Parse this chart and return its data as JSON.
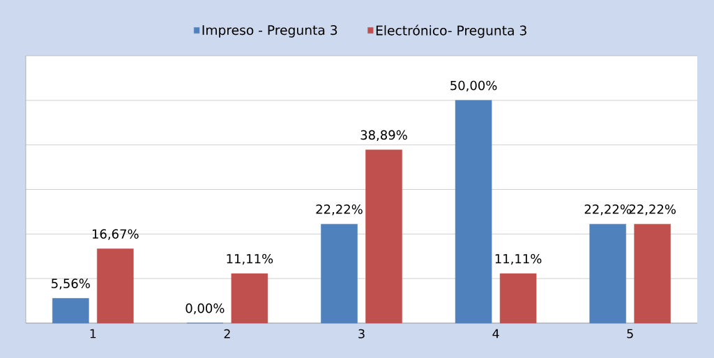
{
  "chart_data": {
    "type": "bar",
    "categories": [
      "1",
      "2",
      "3",
      "4",
      "5"
    ],
    "series": [
      {
        "name": "Impreso - Pregunta 3",
        "color": "#4f81bd",
        "values": [
          5.56,
          0.0,
          22.22,
          50.0,
          22.22
        ],
        "value_labels": [
          "5,56%",
          "0,00%",
          "22,22%",
          "50,00%",
          "22,22%"
        ]
      },
      {
        "name": "Electrónico-  Pregunta 3",
        "color": "#c0504d",
        "values": [
          16.67,
          11.11,
          38.89,
          11.11,
          22.22
        ],
        "value_labels": [
          "16,67%",
          "11,11%",
          "38,89%",
          "11,11%",
          "22,22%"
        ]
      }
    ],
    "ylim": [
      0,
      60
    ],
    "yticks": [
      {
        "value": 0,
        "label": null
      },
      {
        "value": 10,
        "label": null
      },
      {
        "value": 20,
        "label": null
      },
      {
        "value": 30,
        "label": null
      },
      {
        "value": 40,
        "label": null
      },
      {
        "value": 50,
        "label": null
      },
      {
        "value": 60,
        "label": null
      }
    ],
    "tick_labels": "x",
    "grid": "y",
    "legend": "top"
  }
}
